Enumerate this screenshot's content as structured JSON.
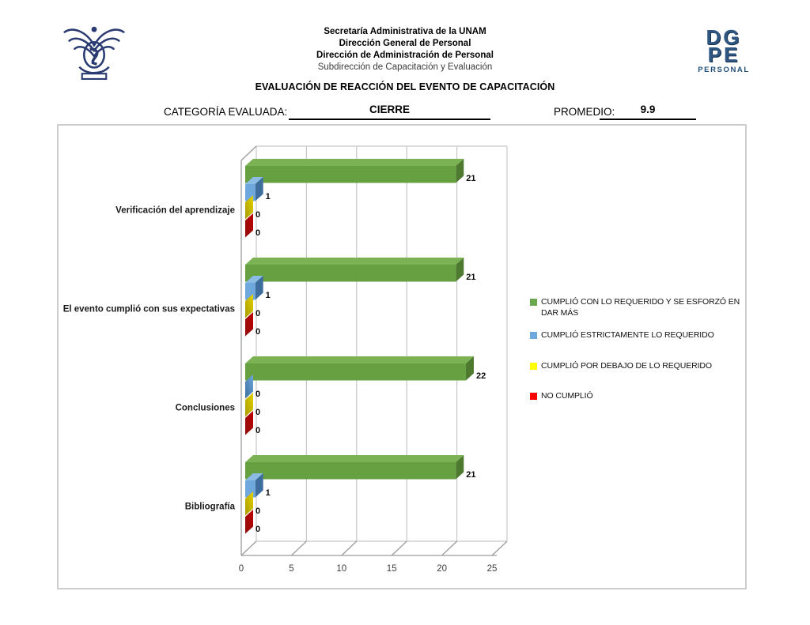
{
  "header": {
    "org_lines": [
      "Secretaría Administrativa de la UNAM",
      "Dirección General de Personal",
      "Dirección de Administración de Personal",
      "Subdirección de Capacitación y Evaluación"
    ],
    "title": "EVALUACIÓN DE REACCIÓN DEL EVENTO DE CAPACITACIÓN",
    "category_label": "CATEGORÍA EVALUADA:",
    "category_value": "CIERRE",
    "average_label": "PROMEDIO:",
    "average_value": "9.9",
    "logo_right": {
      "line1": "DG",
      "line2": "PE",
      "caption": "PERSONAL"
    },
    "logo_left_name": "unam-escudo"
  },
  "chart_data": {
    "type": "bar",
    "orientation": "horizontal-3d",
    "title": "",
    "xlabel": "",
    "ylabel": "",
    "xlim": [
      0,
      25
    ],
    "x_ticks": [
      0,
      5,
      10,
      15,
      20,
      25
    ],
    "grid": true,
    "legend_position": "right",
    "categories": [
      "Verificación del aprendizaje",
      "El evento cumplió con sus expectativas",
      "Conclusiones",
      "Bibliografía"
    ],
    "series": [
      {
        "name": "CUMPLIÓ CON LO REQUERIDO Y SE ESFORZÓ EN DAR MÁS",
        "values": [
          21,
          21,
          22,
          21
        ],
        "color": "#66A041",
        "side_color": "#4E7A2F",
        "top_color": "#7BB254",
        "legend_color": "#6AA84F"
      },
      {
        "name": "CUMPLIÓ ESTRICTAMENTE LO REQUERIDO",
        "values": [
          1,
          1,
          0,
          1
        ],
        "color": "#6FA8DC",
        "side_color": "#3D6E9E",
        "top_color": "#8CBBE4",
        "legend_color": "#6FA8DC"
      },
      {
        "name": "CUMPLIÓ POR DEBAJO DE LO REQUERIDO",
        "values": [
          0,
          0,
          0,
          0
        ],
        "color": "#E3D202",
        "side_color": "#A89B00",
        "top_color": "#F2E84A",
        "legend_color": "#FFFF00"
      },
      {
        "name": "NO CUMPLIÓ",
        "values": [
          0,
          0,
          0,
          0
        ],
        "color": "#C00000",
        "side_color": "#8E0E0D",
        "top_color": "#D63B2F",
        "legend_color": "#FF0000"
      }
    ]
  }
}
